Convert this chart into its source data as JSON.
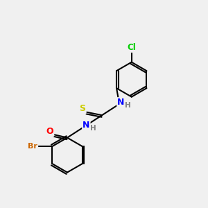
{
  "background_color": "#f0f0f0",
  "bond_color": "#000000",
  "atom_colors": {
    "Cl": "#00cc00",
    "N": "#0000ff",
    "S": "#cccc00",
    "O": "#ff0000",
    "Br": "#cc6600",
    "C": "#000000",
    "H": "#808080"
  },
  "figsize": [
    3.0,
    3.0
  ],
  "dpi": 100
}
